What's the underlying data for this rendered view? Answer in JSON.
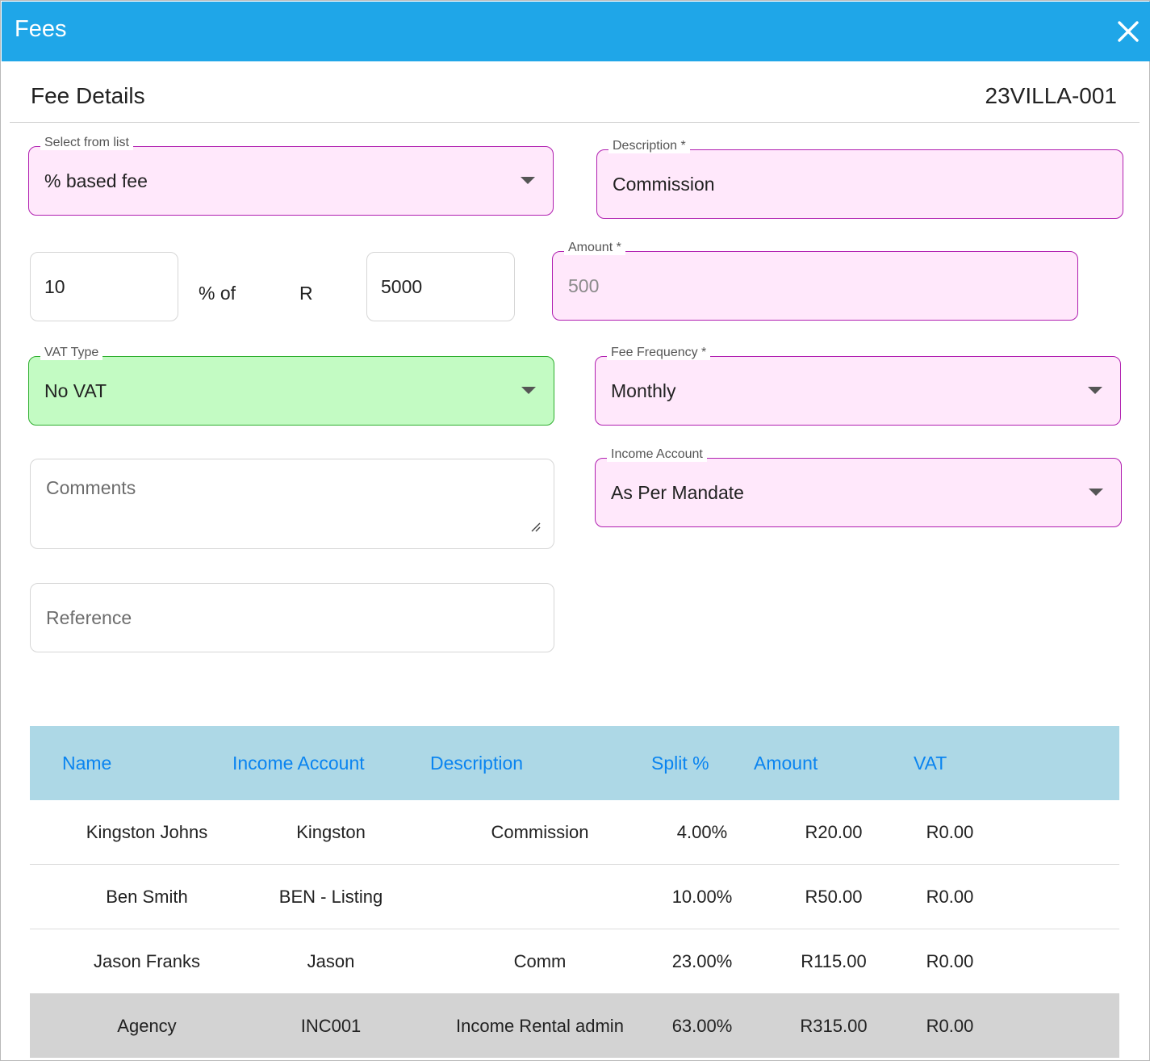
{
  "window": {
    "title": "Fees"
  },
  "header": {
    "section_title": "Fee Details",
    "reference_code": "23VILLA-001"
  },
  "form": {
    "select_from_list": {
      "label": "Select from list",
      "value": "% based fee"
    },
    "description": {
      "label": "Description *",
      "value": "Commission"
    },
    "percentage": {
      "value": "10"
    },
    "percent_of_text": "% of",
    "currency_symbol": "R",
    "base_amount": {
      "value": "5000"
    },
    "amount": {
      "label": "Amount *",
      "value": "500"
    },
    "vat_type": {
      "label": "VAT Type",
      "value": "No VAT"
    },
    "fee_frequency": {
      "label": "Fee Frequency *",
      "value": "Monthly"
    },
    "comments": {
      "placeholder": "Comments"
    },
    "income_account": {
      "label": "Income Account",
      "value": "As Per Mandate"
    },
    "reference": {
      "placeholder": "Reference"
    }
  },
  "table": {
    "columns": [
      "Name",
      "Income Account",
      "Description",
      "Split %",
      "Amount",
      "VAT"
    ],
    "rows": [
      {
        "name": "Kingston Johns",
        "income_account": "Kingston",
        "description": "Commission",
        "split": "4.00%",
        "amount": "R20.00",
        "vat": "R0.00"
      },
      {
        "name": "Ben Smith",
        "income_account": "BEN - Listing",
        "description": "",
        "split": "10.00%",
        "amount": "R50.00",
        "vat": "R0.00"
      },
      {
        "name": "Jason Franks",
        "income_account": "Jason",
        "description": "Comm",
        "split": "23.00%",
        "amount": "R115.00",
        "vat": "R0.00"
      },
      {
        "name": "Agency",
        "income_account": "INC001",
        "description": "Income Rental admin",
        "split": "63.00%",
        "amount": "R315.00",
        "vat": "R0.00"
      }
    ]
  },
  "colors": {
    "titlebar": "#1fa6e8",
    "required_field_bg": "#ffe8fb",
    "required_field_border": "#b01fb0",
    "valid_field_bg": "#c3fbc3",
    "table_header_bg": "#add8e6",
    "table_header_text": "#0a84f0",
    "highlight_row_bg": "#d3d3d3"
  },
  "icons": {
    "close": "close-icon",
    "dropdown": "caret-down-icon",
    "resize": "resize-grip-icon"
  }
}
